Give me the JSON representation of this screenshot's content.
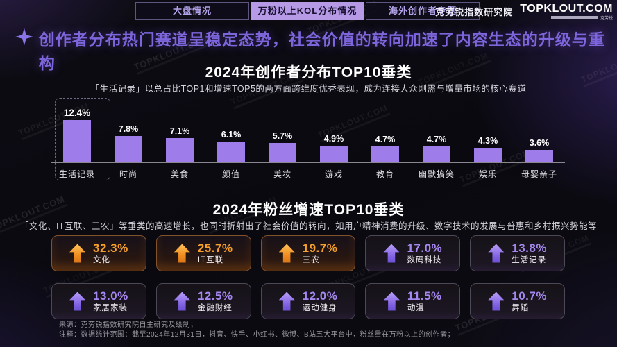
{
  "nav": {
    "tabs": [
      {
        "label": "大盘情况",
        "active": false
      },
      {
        "label": "万粉以上KOL分布情况",
        "active": true
      },
      {
        "label": "海外创作者专题",
        "active": false
      }
    ],
    "brand": {
      "institute": "克劳锐指数研究院",
      "logo": "TOPKLOUT.COM",
      "tagline": "克劳锐"
    }
  },
  "headline": {
    "icon": "sparkle-icon",
    "text": "创作者分布热门赛道呈稳定态势，社会价值的转向加速了内容生态的升级与重构"
  },
  "section_distribution": {
    "title": "2024年创作者分布TOP10垂类",
    "subtitle": "「生活记录」以总占比TOP1和增速TOP5的两方面跨维度优秀表现，成为连接大众刚需与增量市场的核心赛道"
  },
  "section_growth": {
    "title": "2024年粉丝增速TOP10垂类",
    "subtitle": "「文化、IT互联、三农」等垂类的高速增长，也同时折射出了社会价值的转向，如用户精神消费的升级、数字技术的发展与普惠和乡村振兴势能等"
  },
  "chart_data": [
    {
      "type": "bar",
      "title": "2024年创作者分布TOP10垂类",
      "categories": [
        "生活记录",
        "时尚",
        "美食",
        "颜值",
        "美妆",
        "游戏",
        "教育",
        "幽默搞笑",
        "娱乐",
        "母婴亲子"
      ],
      "values": [
        12.4,
        7.8,
        7.1,
        6.1,
        5.7,
        4.9,
        4.7,
        4.7,
        4.3,
        3.6
      ],
      "unit": "%",
      "highlight_index": 0,
      "bar_color": "#9e7ce9",
      "xlabel": "",
      "ylabel": "",
      "ylim": [
        0,
        13
      ],
      "grid": false,
      "legend": false
    },
    {
      "type": "bar",
      "subtype": "kpi-cards",
      "title": "2024年粉丝增速TOP10垂类",
      "categories": [
        "文化",
        "IT互联",
        "三农",
        "数码科技",
        "生活记录",
        "家居家装",
        "金融财经",
        "运动健身",
        "动漫",
        "舞蹈"
      ],
      "values": [
        32.3,
        25.7,
        19.7,
        17.0,
        13.8,
        13.0,
        12.5,
        12.0,
        11.5,
        10.7
      ],
      "unit": "%",
      "themes": [
        "orange",
        "orange",
        "orange",
        "purple",
        "purple",
        "purple",
        "purple",
        "purple",
        "purple",
        "purple"
      ],
      "icon": "arrow-up-icon"
    }
  ],
  "footer": {
    "source": "来源：克劳锐指数研究院自主研究及绘制；",
    "note": "注释：数据统计范围：截至2024年12月31日，抖音、快手、小红书、微博、B站五大平台中，粉丝量在万粉以上的创作者；"
  },
  "watermark": {
    "text": "TOPKLOUT.COM"
  },
  "colors": {
    "accent_purple": "#7d66db",
    "bar_purple": "#9e7ce9",
    "orange": "#f6a02c",
    "card_purple": "#a587f0",
    "tab_active_bg": "#b69ae6"
  }
}
